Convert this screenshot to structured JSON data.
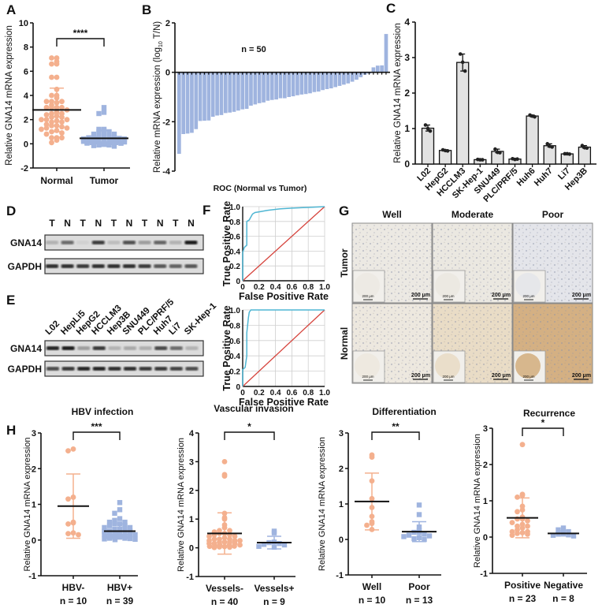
{
  "panel_labels": [
    "A",
    "B",
    "C",
    "D",
    "E",
    "F",
    "G",
    "H"
  ],
  "colors": {
    "orange": "#f4b08e",
    "blue": "#9fb4df",
    "bar_gray": "#e2e2e2",
    "roc_curve": "#4fb6d3",
    "roc_diagonal": "#d6443d"
  },
  "chart_data": [
    {
      "type": "scatter",
      "ylabel": "Relative GNA14 mRNA expression",
      "ylim": [
        -2,
        10
      ],
      "yticks": [
        "-2",
        "0",
        "2",
        "4",
        "6",
        "8",
        "10"
      ],
      "significance": "****",
      "groups": [
        {
          "name": "Normal",
          "color": "#f4b08e",
          "marker": "circle",
          "mean": 2.8,
          "sd": 1.8,
          "values": [
            7.1,
            7.1,
            6.8,
            6.6,
            6.6,
            5.5,
            5.5,
            4.5,
            4.0,
            4.0,
            3.8,
            3.5,
            3.5,
            3.5,
            3.4,
            3.2,
            3.0,
            3.0,
            3.0,
            3.0,
            2.8,
            2.6,
            2.5,
            2.5,
            2.4,
            2.3,
            2.2,
            2.2,
            2.0,
            2.0,
            2.0,
            1.9,
            1.8,
            1.8,
            1.6,
            1.5,
            1.5,
            1.4,
            1.3,
            1.3,
            1.2,
            1.1,
            1.0,
            0.9,
            0.8,
            0.5,
            0.5,
            0.5,
            0.3,
            0.1
          ]
        },
        {
          "name": "Tumor",
          "color": "#9fb4df",
          "marker": "square",
          "mean": 0.45,
          "sd": 0.65,
          "values": [
            3.0,
            2.6,
            2.5,
            1.2,
            1.2,
            1.1,
            1.0,
            1.0,
            0.8,
            0.8,
            0.7,
            0.6,
            0.6,
            0.5,
            0.5,
            0.5,
            0.45,
            0.4,
            0.4,
            0.4,
            0.35,
            0.3,
            0.3,
            0.3,
            0.25,
            0.25,
            0.2,
            0.2,
            0.2,
            0.15,
            0.15,
            0.1,
            0.1,
            0.1,
            0.05,
            0.05,
            0.0,
            0.0,
            -0.05,
            -0.1,
            -0.1,
            -0.15,
            -0.2,
            0.35,
            0.3,
            0.25,
            0.2,
            0.15,
            0.1,
            0.05
          ]
        }
      ]
    },
    {
      "type": "bar",
      "ylabel_prefix": "Relative mRNA expression (log",
      "ylabel_sub": "10",
      "ylabel_suffix": " T/N)",
      "ylim": [
        -4,
        2
      ],
      "yticks": [
        "-4",
        "-2",
        "0",
        "2"
      ],
      "annotation": "n = 50",
      "color": "#9fb4df",
      "values": [
        -3.3,
        -2.5,
        -2.48,
        -2.45,
        -2.3,
        -1.97,
        -1.96,
        -1.95,
        -1.8,
        -1.75,
        -1.73,
        -1.65,
        -1.63,
        -1.6,
        -1.55,
        -1.5,
        -1.48,
        -1.35,
        -1.3,
        -1.25,
        -1.22,
        -1.15,
        -1.12,
        -1.1,
        -1.05,
        -1.05,
        -1.0,
        -0.97,
        -0.93,
        -0.9,
        -0.88,
        -0.85,
        -0.8,
        -0.78,
        -0.72,
        -0.68,
        -0.65,
        -0.6,
        -0.55,
        -0.5,
        -0.45,
        -0.38,
        -0.3,
        -0.2,
        -0.1,
        -0.05,
        0.2,
        0.27,
        0.28,
        1.55
      ]
    },
    {
      "type": "bar",
      "ylabel": "Relative GNA14 mRNA expression",
      "ylim": [
        0,
        4
      ],
      "yticks": [
        "0",
        "1",
        "2",
        "3",
        "4"
      ],
      "categories": [
        "L02",
        "HepG2",
        "HCCLM3",
        "SK-Hep-1",
        "SNU449",
        "PLC/PRF/5",
        "Huh6",
        "Huh7",
        "Li7",
        "Hep3B"
      ],
      "replicates": [
        [
          1.1,
          1.0,
          0.93
        ],
        [
          0.4,
          0.38,
          0.37
        ],
        [
          3.1,
          2.87,
          2.62
        ],
        [
          0.13,
          0.12,
          0.12
        ],
        [
          0.42,
          0.33,
          0.32
        ],
        [
          0.15,
          0.13,
          0.14
        ],
        [
          1.38,
          1.35,
          1.33
        ],
        [
          0.57,
          0.5,
          0.48
        ],
        [
          0.29,
          0.29,
          0.28
        ],
        [
          0.52,
          0.46,
          0.45
        ]
      ]
    },
    {
      "type": "line",
      "title": "ROC (Normal vs Tumor)",
      "xlabel": "False Positive Rate",
      "ylabel": "True Positive Rate",
      "xlim": [
        0,
        1
      ],
      "ylim": [
        0,
        1
      ],
      "xticks": [
        "0",
        "0.2",
        "0.4",
        "0.6",
        "0.8",
        "1.0"
      ],
      "yticks": [
        "0",
        "0.2",
        "0.4",
        "0.6",
        "0.8",
        "1.0"
      ],
      "grid": true,
      "curve": [
        [
          0,
          0
        ],
        [
          0,
          0.38
        ],
        [
          0.02,
          0.45
        ],
        [
          0.05,
          0.48
        ],
        [
          0.05,
          0.8
        ],
        [
          0.08,
          0.82
        ],
        [
          0.1,
          0.86
        ],
        [
          0.12,
          0.9
        ],
        [
          0.15,
          0.92
        ],
        [
          0.2,
          0.93
        ],
        [
          0.3,
          0.95
        ],
        [
          0.45,
          0.97
        ],
        [
          0.6,
          0.98
        ],
        [
          0.8,
          0.99
        ],
        [
          1,
          1
        ]
      ],
      "diagonal": [
        [
          0,
          0
        ],
        [
          1,
          1
        ]
      ]
    },
    {
      "type": "line",
      "xlabel": "False Positive Rate",
      "ylabel": "True Positive Rate",
      "xlim": [
        0,
        1
      ],
      "ylim": [
        0,
        1
      ],
      "xticks": [
        "0",
        "0.2",
        "0.4",
        "0.6",
        "0.8",
        "1.0"
      ],
      "yticks": [
        "0",
        "0.2",
        "0.4",
        "0.6",
        "0.8",
        "1.0"
      ],
      "grid": true,
      "curve": [
        [
          0,
          0
        ],
        [
          0,
          0.22
        ],
        [
          0.03,
          0.25
        ],
        [
          0.05,
          0.4
        ],
        [
          0.05,
          0.7
        ],
        [
          0.07,
          0.9
        ],
        [
          0.08,
          0.97
        ],
        [
          0.1,
          1
        ],
        [
          1,
          1
        ]
      ],
      "diagonal": [
        [
          0,
          0
        ],
        [
          1,
          1
        ]
      ]
    },
    {
      "type": "scatter",
      "title": "HBV infection",
      "ylabel": "Relative GNA14 mRNA expression",
      "ylim": [
        -1,
        3
      ],
      "yticks": [
        "-1",
        "0",
        "1",
        "2",
        "3"
      ],
      "significance": "***",
      "groups": [
        {
          "name": "HBV-",
          "n_label": "n = 10",
          "color": "#f4b08e",
          "marker": "circle",
          "mean": 0.95,
          "sd": 0.9,
          "values": [
            2.55,
            2.5,
            1.2,
            1.15,
            0.5,
            0.48,
            0.45,
            0.2,
            0.18,
            0.15
          ]
        },
        {
          "name": "HBV+",
          "n_label": "n = 39",
          "color": "#9fb4df",
          "marker": "square",
          "mean": 0.25,
          "sd": 0.2,
          "values": [
            1.05,
            0.85,
            0.75,
            0.6,
            0.55,
            0.5,
            0.5,
            0.45,
            0.45,
            0.4,
            0.4,
            0.35,
            0.35,
            0.3,
            0.3,
            0.3,
            0.25,
            0.25,
            0.25,
            0.2,
            0.2,
            0.2,
            0.2,
            0.15,
            0.15,
            0.15,
            0.15,
            0.1,
            0.1,
            0.1,
            0.1,
            0.08,
            0.06,
            0.05,
            0.05,
            0.04,
            0.03,
            0.02,
            0.01
          ]
        }
      ]
    },
    {
      "type": "scatter",
      "title": "Vascular invasion",
      "ylabel": "Relative GNA14 mRNA expression",
      "ylim": [
        -1,
        4
      ],
      "yticks": [
        "-1",
        "0",
        "1",
        "2",
        "3",
        "4"
      ],
      "significance": "*",
      "groups": [
        {
          "name": "Vessels-",
          "n_label": "n = 40",
          "color": "#f4b08e",
          "marker": "circle",
          "mean": 0.5,
          "sd": 0.72,
          "values": [
            3.0,
            2.55,
            2.5,
            1.2,
            1.05,
            1.0,
            0.8,
            0.7,
            0.6,
            0.6,
            0.55,
            0.5,
            0.5,
            0.45,
            0.45,
            0.4,
            0.4,
            0.35,
            0.3,
            0.3,
            0.3,
            0.25,
            0.25,
            0.25,
            0.2,
            0.2,
            0.2,
            0.15,
            0.15,
            0.15,
            0.1,
            0.1,
            0.1,
            0.08,
            0.06,
            0.05,
            0.04,
            0.03,
            0.02,
            0.01
          ]
        },
        {
          "name": "Vessels+",
          "n_label": "n = 9",
          "color": "#9fb4df",
          "marker": "square",
          "mean": 0.18,
          "sd": 0.22,
          "values": [
            0.58,
            0.52,
            0.2,
            0.18,
            0.15,
            0.12,
            0.1,
            0.05,
            0.02
          ]
        }
      ]
    },
    {
      "type": "scatter",
      "title": "Differentiation",
      "ylabel": "Relative GNA14 mRNA expression",
      "ylim": [
        -1,
        3
      ],
      "yticks": [
        "-1",
        "0",
        "1",
        "2",
        "3"
      ],
      "significance": "**",
      "groups": [
        {
          "name": "Well",
          "n_label": "n = 10",
          "color": "#f4b08e",
          "marker": "circle",
          "mean": 1.07,
          "sd": 0.8,
          "values": [
            2.38,
            2.32,
            1.65,
            1.15,
            0.9,
            0.65,
            0.5,
            0.45,
            0.4,
            0.28
          ]
        },
        {
          "name": "Poor",
          "n_label": "n = 13",
          "color": "#9fb4df",
          "marker": "square",
          "mean": 0.22,
          "sd": 0.28,
          "values": [
            0.97,
            0.7,
            0.35,
            0.25,
            0.2,
            0.2,
            0.15,
            0.12,
            0.1,
            0.08,
            0.05,
            0.02,
            0.0
          ]
        }
      ]
    },
    {
      "type": "scatter",
      "title": "Recurrence",
      "ylabel": "Relative GNA14 mRNA expression",
      "ylim": [
        -1,
        3
      ],
      "yticks": [
        "-1",
        "0",
        "1",
        "2",
        "3"
      ],
      "significance": "*",
      "groups": [
        {
          "name": "Positive",
          "n_label": "n = 23",
          "color": "#f4b08e",
          "marker": "circle",
          "mean": 0.53,
          "sd": 0.55,
          "values": [
            2.55,
            1.18,
            1.15,
            1.1,
            0.85,
            0.75,
            0.7,
            0.55,
            0.5,
            0.5,
            0.45,
            0.4,
            0.35,
            0.3,
            0.3,
            0.25,
            0.2,
            0.15,
            0.15,
            0.12,
            0.1,
            0.08,
            0.05
          ]
        },
        {
          "name": "Negative",
          "n_label": "n = 8",
          "color": "#9fb4df",
          "marker": "square",
          "mean": 0.1,
          "sd": 0.07,
          "values": [
            0.25,
            0.2,
            0.15,
            0.1,
            0.08,
            0.06,
            0.05,
            0.03
          ]
        }
      ]
    }
  ],
  "blots": {
    "D": {
      "lanes": [
        "T",
        "N",
        "T",
        "N",
        "T",
        "N",
        "T",
        "N",
        "T",
        "N"
      ],
      "rows": [
        {
          "label": "GNA14",
          "intensity": [
            0.2,
            0.55,
            0.05,
            0.78,
            0.15,
            0.68,
            0.3,
            0.58,
            0.2,
            0.95
          ]
        },
        {
          "label": "GAPDH",
          "intensity": [
            0.85,
            0.85,
            0.8,
            0.85,
            0.85,
            0.85,
            0.8,
            0.65,
            0.6,
            0.65
          ]
        }
      ]
    },
    "E": {
      "lanes": [
        "L02",
        "HepLi5",
        "HepG2",
        "HCCLM3",
        "Hep3B",
        "SNU449",
        "PLC/PRF/5",
        "Huh7",
        "Li7",
        "SK-Hep-1"
      ],
      "rows": [
        {
          "label": "GNA14",
          "intensity": [
            0.9,
            0.95,
            0.3,
            0.8,
            0.2,
            0.25,
            0.22,
            0.72,
            0.55,
            0.2
          ]
        },
        {
          "label": "GAPDH",
          "intensity": [
            0.7,
            0.8,
            0.9,
            0.9,
            0.85,
            0.85,
            0.8,
            0.8,
            0.75,
            0.7
          ]
        }
      ]
    }
  },
  "ihc": {
    "columns": [
      "Well",
      "Moderate",
      "Poor"
    ],
    "rows": [
      "Tumor",
      "Normal"
    ],
    "scale_bar": "200 μm",
    "stain_colors": [
      [
        "#ece9e3",
        "#ebe8e1",
        "#e4e5ea"
      ],
      [
        "#ede8df",
        "#e9dcc6",
        "#d4b083"
      ]
    ]
  }
}
